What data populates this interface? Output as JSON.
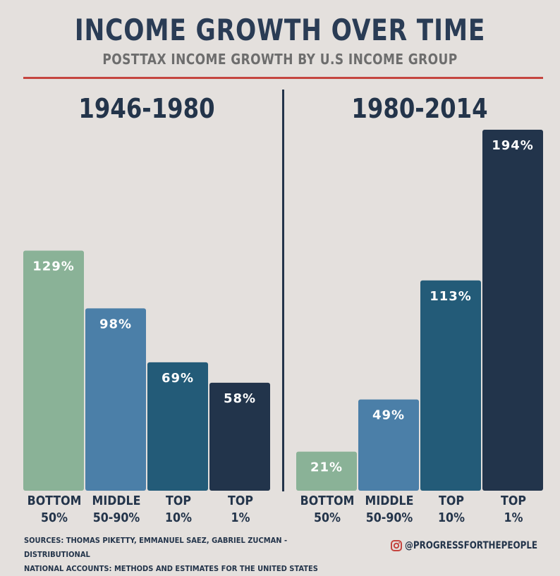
{
  "header": {
    "title": "INCOME GROWTH OVER TIME",
    "subtitle": "POSTTAX INCOME GROWTH BY U.S INCOME GROUP"
  },
  "colors": {
    "background": "#e4e0dd",
    "rule": "#c5453f",
    "bottom50": "#8ab297",
    "middle": "#4b7fa8",
    "top10": "#235b78",
    "top1": "#22344b"
  },
  "chart_data": [
    {
      "type": "bar",
      "title": "1946-1980",
      "categories": [
        "BOTTOM 50%",
        "MIDDLE 50-90%",
        "TOP 10%",
        "TOP 1%"
      ],
      "values": [
        129,
        98,
        69,
        58
      ],
      "value_labels": [
        "129%",
        "98%",
        "69%",
        "58%"
      ],
      "ylim": [
        0,
        194
      ],
      "grid": false
    },
    {
      "type": "bar",
      "title": "1980-2014",
      "categories": [
        "BOTTOM 50%",
        "MIDDLE 50-90%",
        "TOP 10%",
        "TOP 1%"
      ],
      "values": [
        21,
        49,
        113,
        194
      ],
      "value_labels": [
        "21%",
        "49%",
        "113%",
        "194%"
      ],
      "ylim": [
        0,
        194
      ],
      "grid": false
    }
  ],
  "category_lines": [
    [
      "BOTTOM",
      "50%"
    ],
    [
      "MIDDLE",
      "50-90%"
    ],
    [
      "TOP",
      "10%"
    ],
    [
      "TOP",
      "1%"
    ]
  ],
  "footer": {
    "sources_line1": "SOURCES: THOMAS PIKETTY, EMMANUEL SAEZ, GABRIEL ZUCMAN - DISTRIBUTIONAL",
    "sources_line2": "NATIONAL ACCOUNTS: METHODS AND ESTIMATES FOR THE UNITED STATES",
    "handle": "@PROGRESSFORTHEPEOPLE",
    "handle_icon": "instagram-icon"
  }
}
